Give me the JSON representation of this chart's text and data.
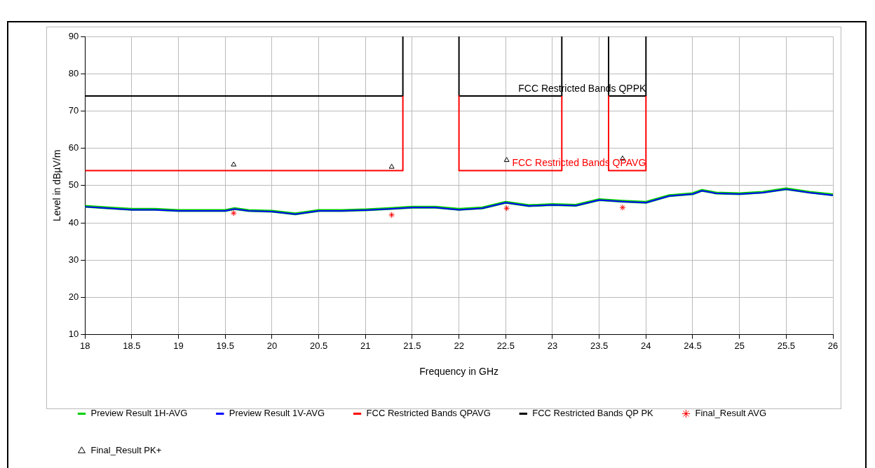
{
  "chart_data": {
    "type": "line",
    "xlabel": "Frequency in GHz",
    "ylabel": "Level in dBµV/m",
    "xlim": [
      18,
      26
    ],
    "xticks": [
      18,
      18.5,
      19,
      19.5,
      20,
      20.5,
      21,
      21.5,
      22,
      22.5,
      23,
      23.5,
      24,
      24.5,
      25,
      25.5,
      26
    ],
    "ylim": [
      10,
      90
    ],
    "yticks": [
      10,
      20,
      30,
      40,
      50,
      60,
      70,
      80,
      90
    ],
    "grid": true,
    "legend": "bottom",
    "series": [
      {
        "name": "Preview Result 1H-AVG",
        "type": "line",
        "marker": "none",
        "color": "#00d000",
        "x": [
          18,
          18.25,
          18.5,
          18.75,
          19,
          19.25,
          19.5,
          19.6,
          19.75,
          20,
          20.25,
          20.5,
          20.75,
          21,
          21.25,
          21.5,
          21.75,
          22,
          22.25,
          22.5,
          22.75,
          23,
          23.25,
          23.5,
          23.75,
          24,
          24.25,
          24.5,
          24.6,
          24.75,
          25,
          25.25,
          25.5,
          25.75,
          26
        ],
        "values": [
          44.4,
          44.0,
          43.6,
          43.6,
          43.3,
          43.3,
          43.3,
          43.8,
          43.3,
          43.1,
          42.4,
          43.3,
          43.3,
          43.5,
          43.8,
          44.2,
          44.2,
          43.6,
          44.0,
          45.5,
          44.6,
          44.9,
          44.7,
          46.2,
          45.8,
          45.5,
          47.3,
          47.8,
          48.7,
          48.0,
          47.8,
          48.2,
          49.1,
          48.2,
          47.5
        ]
      },
      {
        "name": "Preview Result 1V-AVG",
        "type": "line",
        "marker": "none",
        "color": "#0000ff",
        "x": [
          18,
          18.25,
          18.5,
          18.75,
          19,
          19.25,
          19.5,
          19.6,
          19.75,
          20,
          20.25,
          20.5,
          20.75,
          21,
          21.25,
          21.5,
          21.75,
          22,
          22.25,
          22.5,
          22.75,
          23,
          23.25,
          23.5,
          23.75,
          24,
          24.25,
          24.5,
          24.6,
          24.75,
          25,
          25.25,
          25.5,
          25.75,
          26
        ],
        "values": [
          44.3,
          43.9,
          43.5,
          43.5,
          43.2,
          43.2,
          43.2,
          43.7,
          43.2,
          43.0,
          42.3,
          43.2,
          43.2,
          43.4,
          43.7,
          44.1,
          44.1,
          43.5,
          43.9,
          45.4,
          44.5,
          44.8,
          44.6,
          46.1,
          45.7,
          45.4,
          47.2,
          47.7,
          48.6,
          47.9,
          47.7,
          48.1,
          49.0,
          48.1,
          47.4
        ]
      },
      {
        "name": "FCC Restricted Bands QPAVG",
        "type": "line",
        "marker": "none",
        "color": "#ff0000",
        "x": [
          18,
          21.4,
          21.4,
          21.7,
          22,
          22,
          23.1,
          23.1,
          23.35,
          23.6,
          23.6,
          24,
          24
        ],
        "values": [
          54,
          54,
          74,
          null,
          74,
          54,
          54,
          74,
          null,
          74,
          54,
          54,
          74
        ]
      },
      {
        "name": "FCC Restricted Bands QP PK",
        "type": "line",
        "marker": "none",
        "color": "#000000",
        "x": [
          18,
          21.4,
          21.4,
          21.7,
          22,
          22,
          23.1,
          23.1,
          23.35,
          23.6,
          23.6,
          24,
          24
        ],
        "values": [
          74,
          74,
          90,
          null,
          90,
          74,
          74,
          90,
          null,
          90,
          74,
          74,
          90
        ]
      },
      {
        "name": "Final_Result AVG",
        "type": "scatter",
        "marker": "cross",
        "color": "#ff0000",
        "x": [
          19.59,
          21.28,
          22.51,
          23.75
        ],
        "values": [
          42.6,
          42.1,
          43.9,
          44.1
        ]
      },
      {
        "name": "Final_Result PK+",
        "type": "scatter",
        "marker": "triangle",
        "color": "#000000",
        "x": [
          19.59,
          21.28,
          22.51,
          23.75
        ],
        "values": [
          55.6,
          55.0,
          56.8,
          57.2
        ]
      }
    ],
    "annotations": [
      {
        "text": "FCC Restricted Bands QPPK",
        "x": 24,
        "y": 74
      },
      {
        "text": "FCC Restricted Bands QPAVG",
        "x": 24,
        "y": 54
      }
    ]
  }
}
